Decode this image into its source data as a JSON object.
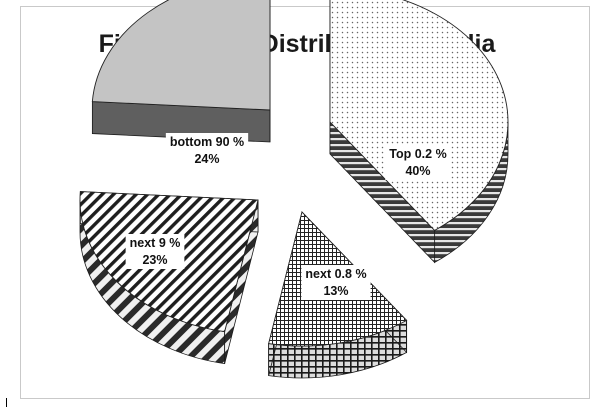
{
  "chart_data": {
    "type": "pie",
    "title": "Fig 2: Wealth Distribution in India",
    "slices": [
      {
        "label": "Top 0.2 %",
        "percent_label": "40%",
        "value": 40,
        "pattern": "dots"
      },
      {
        "label": "next 0.8 %",
        "percent_label": "13%",
        "value": 13,
        "pattern": "grid"
      },
      {
        "label": "next 9 %",
        "percent_label": "23%",
        "value": 23,
        "pattern": "diagonal-stripes"
      },
      {
        "label": "bottom 90 %",
        "percent_label": "24%",
        "value": 24,
        "pattern": "solid-gray"
      }
    ],
    "style": "3d-exploded",
    "colors": {
      "fill_dark": "#222222",
      "gray_top": "#c4c4c4",
      "gray_side": "#5f5f5f"
    }
  }
}
